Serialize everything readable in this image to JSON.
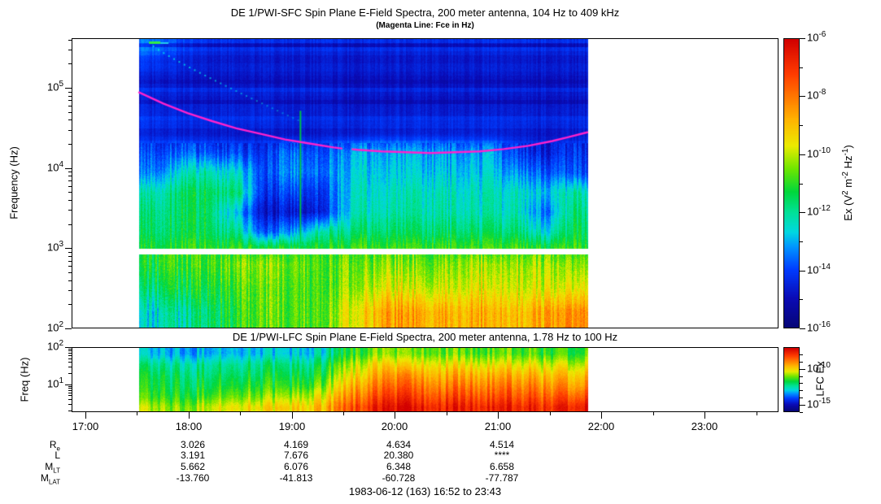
{
  "titles": {
    "sfc_title": "DE 1/PWI-SFC  Spin Plane E-Field Spectra, 200 meter antenna, 104 Hz to 409 kHz",
    "sfc_subtitle": "(Magenta Line: Fce in Hz)",
    "lfc_title": "DE 1/PWI-LFC  Spin Plane E-Field Spectra, 200 meter antenna, 1.78 Hz to 100 Hz"
  },
  "axes": {
    "sfc_y": {
      "label": "Frequency (Hz)",
      "log_min": 2.0,
      "log_max": 5.62,
      "major_exps": [
        2,
        3,
        4,
        5
      ]
    },
    "lfc_y": {
      "label": "Freq (Hz)",
      "log_min": 0.25,
      "log_max": 2.0,
      "major_exps": [
        1,
        2
      ]
    },
    "time": {
      "start": "16:52",
      "end": "23:43",
      "data_start": "17:31",
      "data_end": "21:52",
      "labels": [
        "17:00",
        "18:00",
        "19:00",
        "20:00",
        "21:00",
        "22:00",
        "23:00"
      ]
    }
  },
  "colorbars": {
    "sfc": {
      "label_parts": [
        {
          "text": "Ex (V"
        },
        {
          "sup": "2"
        },
        {
          "text": " m"
        },
        {
          "sup": "-2"
        },
        {
          "text": " Hz"
        },
        {
          "sup": "-1"
        },
        {
          "text": ")"
        }
      ],
      "vmin": -16,
      "vmax": -6,
      "tick_exps": [
        -6,
        -7,
        -8,
        -9,
        -10,
        -11,
        -12,
        -13,
        -14,
        -15,
        -16
      ],
      "label_exps": [
        -6,
        -8,
        -10,
        -12,
        -14,
        -16
      ]
    },
    "lfc": {
      "label": "LFC Ex",
      "vmin": -16,
      "vmax": -7,
      "tick_exps": [
        -8,
        -9,
        -10,
        -11,
        -12,
        -13,
        -14,
        -15,
        -16
      ],
      "label_exps": [
        -10,
        -15
      ]
    }
  },
  "colors": {
    "fce_line": "#ff22cc",
    "green_burst": "#00d830",
    "arc_dot": "#00e0e0",
    "colormap_stops": [
      [
        0.0,
        [
          6,
          6,
          120
        ]
      ],
      [
        0.1,
        [
          10,
          10,
          180
        ]
      ],
      [
        0.2,
        [
          0,
          60,
          255
        ]
      ],
      [
        0.28,
        [
          0,
          150,
          255
        ]
      ],
      [
        0.33,
        [
          0,
          215,
          225
        ]
      ],
      [
        0.4,
        [
          0,
          225,
          150
        ]
      ],
      [
        0.47,
        [
          0,
          215,
          60
        ]
      ],
      [
        0.55,
        [
          110,
          230,
          0
        ]
      ],
      [
        0.63,
        [
          235,
          235,
          0
        ]
      ],
      [
        0.72,
        [
          255,
          180,
          0
        ]
      ],
      [
        0.8,
        [
          255,
          120,
          0
        ]
      ],
      [
        0.88,
        [
          255,
          60,
          0
        ]
      ],
      [
        1.0,
        [
          210,
          0,
          0
        ]
      ]
    ]
  },
  "ephemeris": {
    "hour_cols": [
      "18:00",
      "19:00",
      "20:00",
      "21:00"
    ],
    "rows": [
      {
        "base": "R",
        "sub": "e",
        "values": [
          "3.026",
          "4.169",
          "4.634",
          "4.514"
        ]
      },
      {
        "base": "L",
        "sub": "",
        "values": [
          "3.191",
          "7.676",
          "20.380",
          "****"
        ]
      },
      {
        "base": "M",
        "sub": "LT",
        "values": [
          "5.662",
          "6.076",
          "6.348",
          "6.658"
        ]
      },
      {
        "base": "M",
        "sub": "LAT",
        "values": [
          "-13.760",
          "-41.813",
          "-60.728",
          "-77.787"
        ]
      }
    ]
  },
  "footer": {
    "date_range": "1983-06-12 (163) 16:52 to 23:43"
  },
  "chart_data": [
    {
      "type": "heatmap",
      "name": "SFC E-field spectrogram",
      "kind": "sfc",
      "time_start": "17:31",
      "time_end": "21:52",
      "log_min": 2.0,
      "log_max": 5.62,
      "gap_log": [
        2.92,
        2.995
      ],
      "value_units": "log10 Ex (V^2 m^-2 Hz^-1)",
      "value_range": [
        -16,
        -6
      ],
      "row_log_centers": [
        5.45,
        5.2,
        4.95,
        4.7,
        4.45,
        4.2,
        3.95,
        3.7,
        3.45,
        3.2,
        3.02,
        2.8,
        2.5,
        2.2
      ],
      "grid": [
        [
          -13.8,
          -14.3,
          -14.5,
          -14.6,
          -14.6,
          -14.6,
          -14.6,
          -14.6,
          -14.6,
          -14.6,
          -14.6,
          -14.6,
          -14.6,
          -14.6,
          -14.6,
          -14.6
        ],
        [
          -14.4,
          -14.5,
          -14.6,
          -14.6,
          -14.6,
          -14.6,
          -14.6,
          -14.6,
          -14.6,
          -14.6,
          -14.6,
          -14.6,
          -14.6,
          -14.6,
          -14.6,
          -14.6
        ],
        [
          -14.5,
          -14.6,
          -14.6,
          -14.6,
          -14.6,
          -14.6,
          -14.6,
          -14.7,
          -14.7,
          -14.7,
          -14.7,
          -14.7,
          -14.7,
          -14.7,
          -14.7,
          -14.7
        ],
        [
          -14.5,
          -14.6,
          -14.6,
          -14.6,
          -14.6,
          -14.7,
          -14.7,
          -14.7,
          -14.7,
          -14.7,
          -14.7,
          -14.7,
          -14.7,
          -14.7,
          -14.7,
          -14.7
        ],
        [
          -14.4,
          -14.5,
          -14.5,
          -14.6,
          -14.6,
          -14.6,
          -14.6,
          -14.5,
          -14.4,
          -14.4,
          -14.4,
          -14.4,
          -14.4,
          -14.5,
          -14.6,
          -14.5
        ],
        [
          -13.9,
          -13.6,
          -13.8,
          -14.0,
          -14.1,
          -13.4,
          -13.9,
          -13.1,
          -13.0,
          -13.0,
          -13.1,
          -13.2,
          -13.1,
          -14.2,
          -14.5,
          -14.2
        ],
        [
          -13.4,
          -12.4,
          -12.2,
          -12.6,
          -13.9,
          -13.1,
          -13.6,
          -12.8,
          -12.7,
          -12.7,
          -12.8,
          -12.8,
          -12.8,
          -13.4,
          -13.7,
          -13.9
        ],
        [
          -12.2,
          -11.6,
          -11.5,
          -11.8,
          -14.3,
          -13.8,
          -14.2,
          -12.6,
          -12.4,
          -12.3,
          -12.3,
          -12.4,
          -12.4,
          -12.5,
          -12.8,
          -12.2
        ],
        [
          -11.8,
          -11.5,
          -11.6,
          -13.0,
          -14.8,
          -14.6,
          -14.5,
          -12.5,
          -12.2,
          -12.1,
          -12.2,
          -12.2,
          -12.3,
          -12.4,
          -13.5,
          -11.8
        ],
        [
          -11.6,
          -11.4,
          -11.5,
          -12.0,
          -13.8,
          -13.0,
          -12.0,
          -11.8,
          -11.6,
          -11.6,
          -11.7,
          -11.6,
          -11.7,
          -11.8,
          -12.5,
          -11.5
        ],
        [
          -11.2,
          -11.0,
          -11.0,
          -11.1,
          -11.3,
          -11.2,
          -11.1,
          -11.0,
          -10.9,
          -10.9,
          -11.0,
          -10.9,
          -11.0,
          -11.0,
          -11.2,
          -11.0
        ],
        [
          -11.3,
          -11.0,
          -10.8,
          -10.4,
          -10.3,
          -10.6,
          -10.8,
          -10.6,
          -10.4,
          -10.3,
          -10.4,
          -10.2,
          -10.0,
          -10.2,
          -10.4,
          -10.3
        ],
        [
          -11.8,
          -11.4,
          -11.2,
          -10.8,
          -10.6,
          -10.8,
          -10.9,
          -10.4,
          -9.8,
          -9.6,
          -9.8,
          -9.7,
          -9.5,
          -9.8,
          -10.0,
          -9.6
        ],
        [
          -12.6,
          -12.2,
          -11.6,
          -11.0,
          -10.6,
          -10.8,
          -10.8,
          -9.8,
          -8.8,
          -8.4,
          -8.6,
          -8.8,
          -8.6,
          -9.0,
          -8.8,
          -8.2
        ]
      ],
      "fce_line": {
        "color": "#ff22cc",
        "gap_t": [
          0.452,
          0.476
        ],
        "points": [
          [
            0.0,
            4.95
          ],
          [
            0.054,
            4.81
          ],
          [
            0.108,
            4.69
          ],
          [
            0.163,
            4.59
          ],
          [
            0.217,
            4.5
          ],
          [
            0.271,
            4.43
          ],
          [
            0.326,
            4.36
          ],
          [
            0.38,
            4.31
          ],
          [
            0.434,
            4.26
          ],
          [
            0.452,
            4.247
          ],
          [
            0.476,
            4.237
          ],
          [
            0.488,
            4.23
          ],
          [
            0.542,
            4.21
          ],
          [
            0.597,
            4.2
          ],
          [
            0.651,
            4.19
          ],
          [
            0.705,
            4.2
          ],
          [
            0.759,
            4.21
          ],
          [
            0.814,
            4.24
          ],
          [
            0.868,
            4.28
          ],
          [
            0.922,
            4.34
          ],
          [
            0.958,
            4.39
          ],
          [
            1.0,
            4.45
          ]
        ]
      },
      "overlays": {
        "green_burst": {
          "t": 0.36,
          "log_min": 3.05,
          "log_max": 4.72
        },
        "drift_arc": {
          "t_start": 0.032,
          "logf_start": 5.53,
          "t_end": 0.355,
          "logf_end": 4.6
        }
      }
    },
    {
      "type": "heatmap",
      "name": "LFC E-field spectrogram",
      "kind": "lfc",
      "time_start": "17:31",
      "time_end": "21:52",
      "log_min": 0.25,
      "log_max": 2.0,
      "value_units": "log10 LFC Ex",
      "value_range": [
        -16,
        -7
      ],
      "row_log_centers": [
        1.85,
        1.55,
        1.25,
        0.95,
        0.65,
        0.38
      ],
      "grid": [
        [
          -13.3,
          -13.4,
          -13.2,
          -13.0,
          -13.2,
          -13.0,
          -12.8,
          -11.6,
          -11.0,
          -11.2,
          -11.0,
          -11.2,
          -11.4,
          -11.2,
          -11.6,
          -11.4
        ],
        [
          -12.4,
          -12.5,
          -12.3,
          -12.2,
          -12.3,
          -12.2,
          -12.0,
          -10.8,
          -10.0,
          -10.2,
          -10.0,
          -10.2,
          -10.4,
          -10.2,
          -10.6,
          -10.4
        ],
        [
          -12.0,
          -12.1,
          -12.0,
          -11.8,
          -12.0,
          -11.8,
          -11.6,
          -10.2,
          -9.4,
          -9.2,
          -9.4,
          -9.4,
          -9.6,
          -9.4,
          -9.8,
          -9.6
        ],
        [
          -11.8,
          -11.9,
          -11.7,
          -11.4,
          -11.6,
          -11.4,
          -11.0,
          -9.6,
          -8.8,
          -8.6,
          -8.8,
          -8.8,
          -9.0,
          -8.8,
          -9.2,
          -9.0
        ],
        [
          -11.5,
          -11.6,
          -11.2,
          -10.8,
          -11.0,
          -10.6,
          -10.2,
          -9.0,
          -8.2,
          -8.0,
          -8.2,
          -8.2,
          -8.4,
          -8.2,
          -8.6,
          -8.2
        ],
        [
          -10.8,
          -11.0,
          -10.4,
          -10.0,
          -10.2,
          -9.8,
          -9.6,
          -8.4,
          -7.6,
          -7.4,
          -7.6,
          -7.6,
          -7.8,
          -7.6,
          -8.0,
          -7.4
        ]
      ]
    }
  ]
}
